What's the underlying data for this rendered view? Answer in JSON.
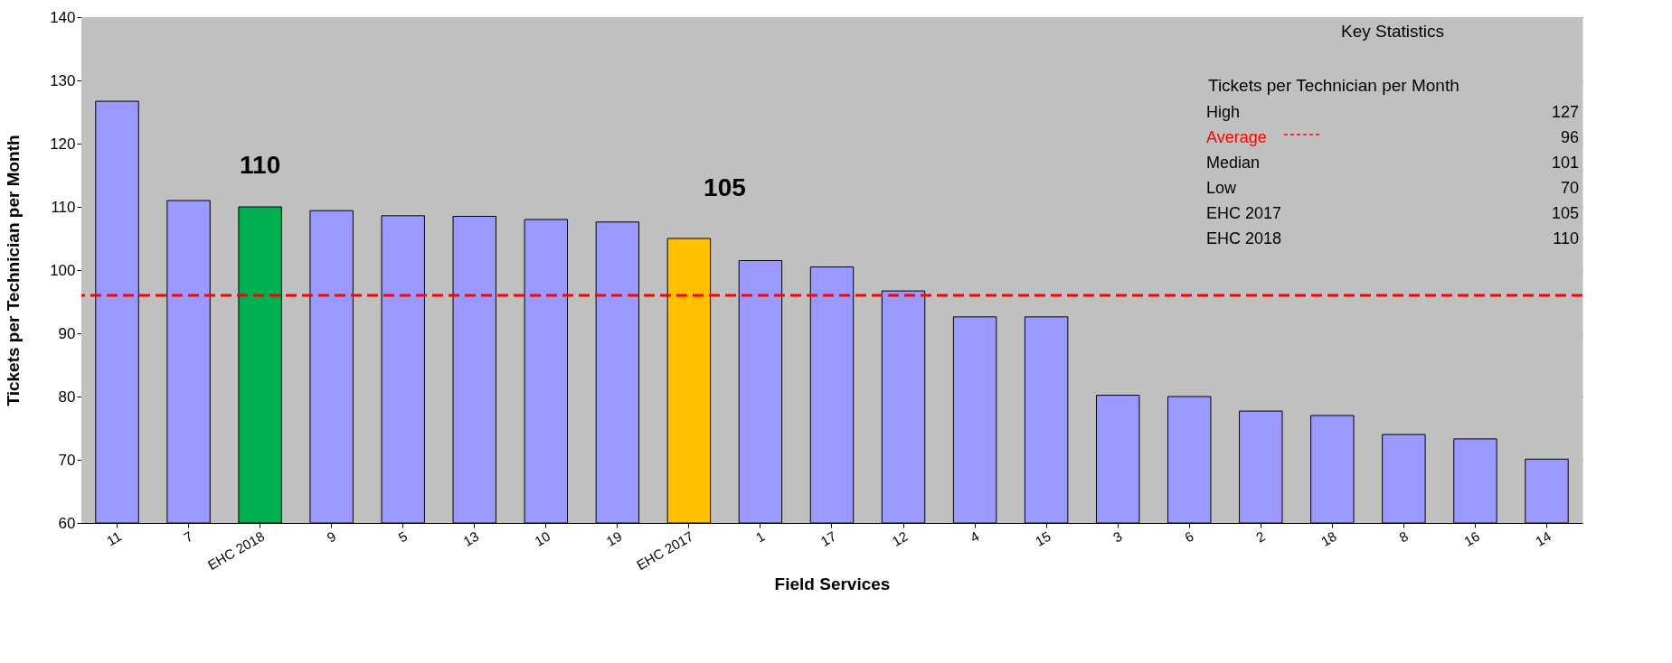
{
  "chart_data": {
    "type": "bar",
    "xlabel": "Field Services",
    "ylabel": "Tickets per Technician per Month",
    "categories": [
      "11",
      "7",
      "EHC 2018",
      "9",
      "5",
      "13",
      "10",
      "19",
      "EHC 2017",
      "1",
      "17",
      "12",
      "4",
      "15",
      "3",
      "6",
      "2",
      "18",
      "8",
      "16",
      "14"
    ],
    "values": [
      126.7,
      111,
      110,
      109.4,
      108.6,
      108.5,
      108,
      107.6,
      105,
      101.5,
      100.5,
      96.7,
      92.6,
      92.6,
      80.2,
      80,
      77.7,
      77,
      74,
      73.3,
      70.1
    ],
    "colors": [
      "#9999ff",
      "#9999ff",
      "#00b050",
      "#9999ff",
      "#9999ff",
      "#9999ff",
      "#9999ff",
      "#9999ff",
      "#ffc000",
      "#9999ff",
      "#9999ff",
      "#9999ff",
      "#9999ff",
      "#9999ff",
      "#9999ff",
      "#9999ff",
      "#9999ff",
      "#9999ff",
      "#9999ff",
      "#9999ff",
      "#9999ff"
    ],
    "ylim": [
      60,
      140
    ],
    "yticks": [
      60,
      70,
      80,
      90,
      100,
      110,
      120,
      130,
      140
    ],
    "grid": "y",
    "ref_lines": [
      {
        "axis": "y",
        "value": 96,
        "color": "#ff0000",
        "line_style": "dashed"
      }
    ],
    "annotations": [
      "Key Statistics",
      "Tickets per Technician per Month",
      "High",
      "127",
      "Average",
      "96",
      "Median",
      "101",
      "Low",
      "70",
      "EHC 2017",
      "105",
      "EHC 2018",
      "110",
      "110",
      "105"
    ]
  }
}
